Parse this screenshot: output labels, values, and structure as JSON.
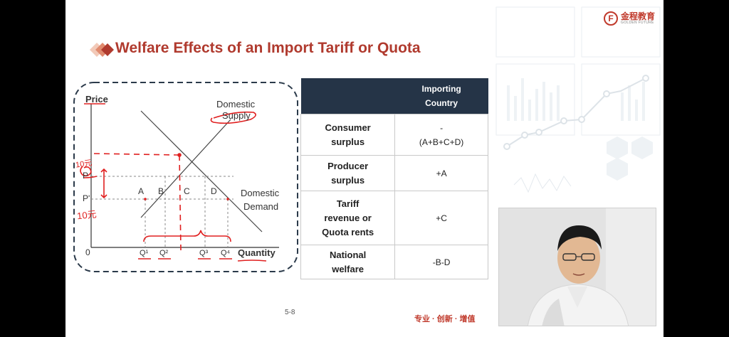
{
  "slide": {
    "title": "Welfare Effects of an Import Tariff or Quota",
    "page_number": "5-8",
    "slogan": "专业 · 创新 · 增值",
    "logo": {
      "name": "金程教育",
      "subtitle": "GOLDEN FUTURE"
    }
  },
  "graph": {
    "y_axis_label": "Price",
    "x_axis_label": "Quantity",
    "origin": "0",
    "supply_label_1": "Domestic",
    "supply_label_2": "Supply",
    "demand_label_1": "Domestic",
    "demand_label_2": "Demand",
    "price_tariff": "P",
    "price_world": "P'",
    "areas": [
      "A",
      "B",
      "C",
      "D"
    ],
    "quantities": [
      "Q¹",
      "Q²",
      "Q³",
      "Q⁴"
    ],
    "annotation_tariff": "10元",
    "annotation_world": "10元"
  },
  "table": {
    "header_col": "Importing Country",
    "rows": [
      {
        "label": "Consumer surplus",
        "value_line1": "-",
        "value_line2": "(A+B+C+D)"
      },
      {
        "label": "Producer surplus",
        "value": "+A"
      },
      {
        "label": "Tariff revenue or Quota rents",
        "value": "+C"
      },
      {
        "label": "National welfare",
        "value": "-B-D"
      }
    ]
  },
  "colors": {
    "title": "#b03a2e",
    "table_header": "#253447",
    "annotation": "#e02020",
    "slogan": "#c0392b"
  }
}
